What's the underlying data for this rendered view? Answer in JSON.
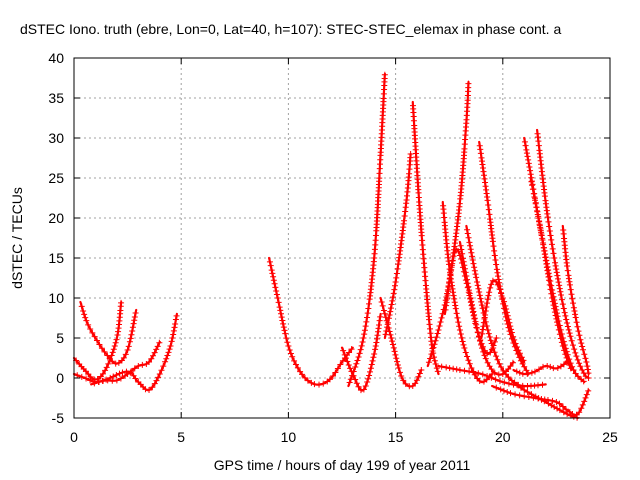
{
  "chart_data": {
    "type": "scatter",
    "title": "dSTEC Iono. truth (ebre, Lon=0, Lat=40, h=107): STEC-STEC_elemax in phase cont. a",
    "xlabel": "GPS time / hours of day 199 of year 2011",
    "ylabel": "dSTEC  / TECUs",
    "xlim": [
      0,
      25
    ],
    "ylim": [
      -5,
      40
    ],
    "xticks": [
      0,
      5,
      10,
      15,
      20,
      25
    ],
    "yticks": [
      -5,
      0,
      5,
      10,
      15,
      20,
      25,
      30,
      35,
      40
    ],
    "grid": true,
    "marker": "+",
    "color": "#ff0000",
    "arcs": [
      {
        "x": [
          0,
          0.5,
          1.0,
          1.5,
          2.0,
          2.2
        ],
        "y": [
          2.5,
          1.0,
          -0.2,
          1.2,
          5.0,
          9.5
        ]
      },
      {
        "x": [
          0.3,
          0.6,
          1.0,
          1.5,
          2.0,
          2.5,
          2.9
        ],
        "y": [
          9.5,
          7.0,
          5.0,
          3.0,
          1.8,
          3.5,
          8.5
        ]
      },
      {
        "x": [
          0,
          0.5,
          1.0,
          1.5,
          2.0,
          2.5,
          3.0,
          3.5,
          4.0
        ],
        "y": [
          0.5,
          0,
          -0.5,
          -0.3,
          -0.3,
          0.5,
          1.5,
          2.0,
          4.5
        ]
      },
      {
        "x": [
          0.8,
          1.5,
          2.5,
          3.0,
          3.5,
          4.0,
          4.5,
          4.8
        ],
        "y": [
          -0.8,
          -0.2,
          0.8,
          -0.5,
          -1.5,
          0.5,
          4.0,
          8.0
        ]
      },
      {
        "x": [
          9.1,
          9.5,
          10.0,
          10.5,
          11.0,
          11.5,
          12.0,
          12.5,
          13.0
        ],
        "y": [
          15.0,
          10.0,
          4.0,
          1.0,
          -0.5,
          -0.8,
          0,
          2.0,
          3.8
        ]
      },
      {
        "x": [
          12.5,
          13.0,
          13.5,
          14.0,
          14.3
        ],
        "y": [
          3.8,
          0.5,
          -1.5,
          3.0,
          8.0
        ]
      },
      {
        "x": [
          12.8,
          13.5,
          14.0,
          14.3,
          14.5
        ],
        "y": [
          -1.0,
          5.0,
          15.0,
          28.0,
          38.0
        ]
      },
      {
        "x": [
          14.3,
          14.8,
          15.3,
          15.8,
          16.2
        ],
        "y": [
          10.0,
          5.0,
          0,
          -1.0,
          1.0
        ]
      },
      {
        "x": [
          14.5,
          15.0,
          15.5,
          15.7
        ],
        "y": [
          5.0,
          12.0,
          22.0,
          28.0
        ]
      },
      {
        "x": [
          15.8,
          16.1,
          16.4,
          16.7,
          17.0
        ],
        "y": [
          34.5,
          22.0,
          12.0,
          4.0,
          0.5
        ]
      },
      {
        "x": [
          16.5,
          17.0,
          17.5,
          18.0,
          18.3,
          18.4
        ],
        "y": [
          1.5,
          6.0,
          12.0,
          22.0,
          32.0,
          37.0
        ]
      },
      {
        "x": [
          17.2,
          17.5,
          18.0,
          18.5,
          19.0,
          19.5
        ],
        "y": [
          22.0,
          14.0,
          6.0,
          1.5,
          -0.5,
          0.5
        ]
      },
      {
        "x": [
          17.3,
          17.8,
          18.3,
          18.8,
          19.3,
          19.7
        ],
        "y": [
          8.0,
          16.0,
          12.0,
          6.0,
          3.0,
          5.0
        ]
      },
      {
        "x": [
          18.0,
          18.5,
          19.0,
          19.5,
          20.0,
          20.5
        ],
        "y": [
          17.0,
          10.0,
          4.0,
          1.0,
          0.5,
          2.0
        ]
      },
      {
        "x": [
          18.3,
          18.8,
          19.3,
          19.8,
          20.3,
          20.8
        ],
        "y": [
          19.0,
          12.0,
          6.0,
          2.0,
          0,
          -1.0
        ]
      },
      {
        "x": [
          17.0,
          18.0,
          19.0,
          20.0,
          21.0,
          22.0
        ],
        "y": [
          1.5,
          1.0,
          0.5,
          -0.5,
          -1.0,
          -0.8
        ]
      },
      {
        "x": [
          18.9,
          19.3,
          19.7,
          20.2,
          20.7,
          21.2
        ],
        "y": [
          29.5,
          22.0,
          14.0,
          7.0,
          3.0,
          0.5
        ]
      },
      {
        "x": [
          19.0,
          19.5,
          20.0,
          20.5,
          21.0
        ],
        "y": [
          5.0,
          12.0,
          10.0,
          5.0,
          2.0
        ]
      },
      {
        "x": [
          20.5,
          21.0,
          21.5,
          22.0,
          22.5,
          23.0
        ],
        "y": [
          1.0,
          0.5,
          0.8,
          1.5,
          1.2,
          2.0
        ]
      },
      {
        "x": [
          20.5,
          21.0,
          22.0,
          23.0,
          23.5
        ],
        "y": [
          -0.5,
          -1.5,
          -3.0,
          -4.5,
          -5.0
        ]
      },
      {
        "x": [
          19.5,
          20.5,
          21.5,
          22.5,
          23.0,
          23.5,
          24.0
        ],
        "y": [
          -1.0,
          -2.0,
          -2.5,
          -3.0,
          -4.0,
          -4.5,
          -1.5
        ]
      },
      {
        "x": [
          21.0,
          21.4,
          21.8,
          22.3,
          22.8,
          23.3,
          23.8
        ],
        "y": [
          30.0,
          24.0,
          18.0,
          11.0,
          5.0,
          1.0,
          -0.5
        ]
      },
      {
        "x": [
          21.6,
          22.0,
          22.4,
          22.9,
          23.4,
          23.8,
          24.0
        ],
        "y": [
          31.0,
          22.0,
          15.0,
          8.0,
          3.0,
          0.5,
          0
        ]
      },
      {
        "x": [
          21.3,
          21.8,
          22.3,
          22.8,
          23.2
        ],
        "y": [
          25.0,
          18.0,
          10.0,
          4.0,
          1.0
        ]
      },
      {
        "x": [
          22.8,
          23.0,
          23.3,
          23.6,
          23.9,
          24.0
        ],
        "y": [
          19.0,
          14.0,
          9.0,
          5.0,
          2.0,
          0.5
        ]
      }
    ]
  }
}
